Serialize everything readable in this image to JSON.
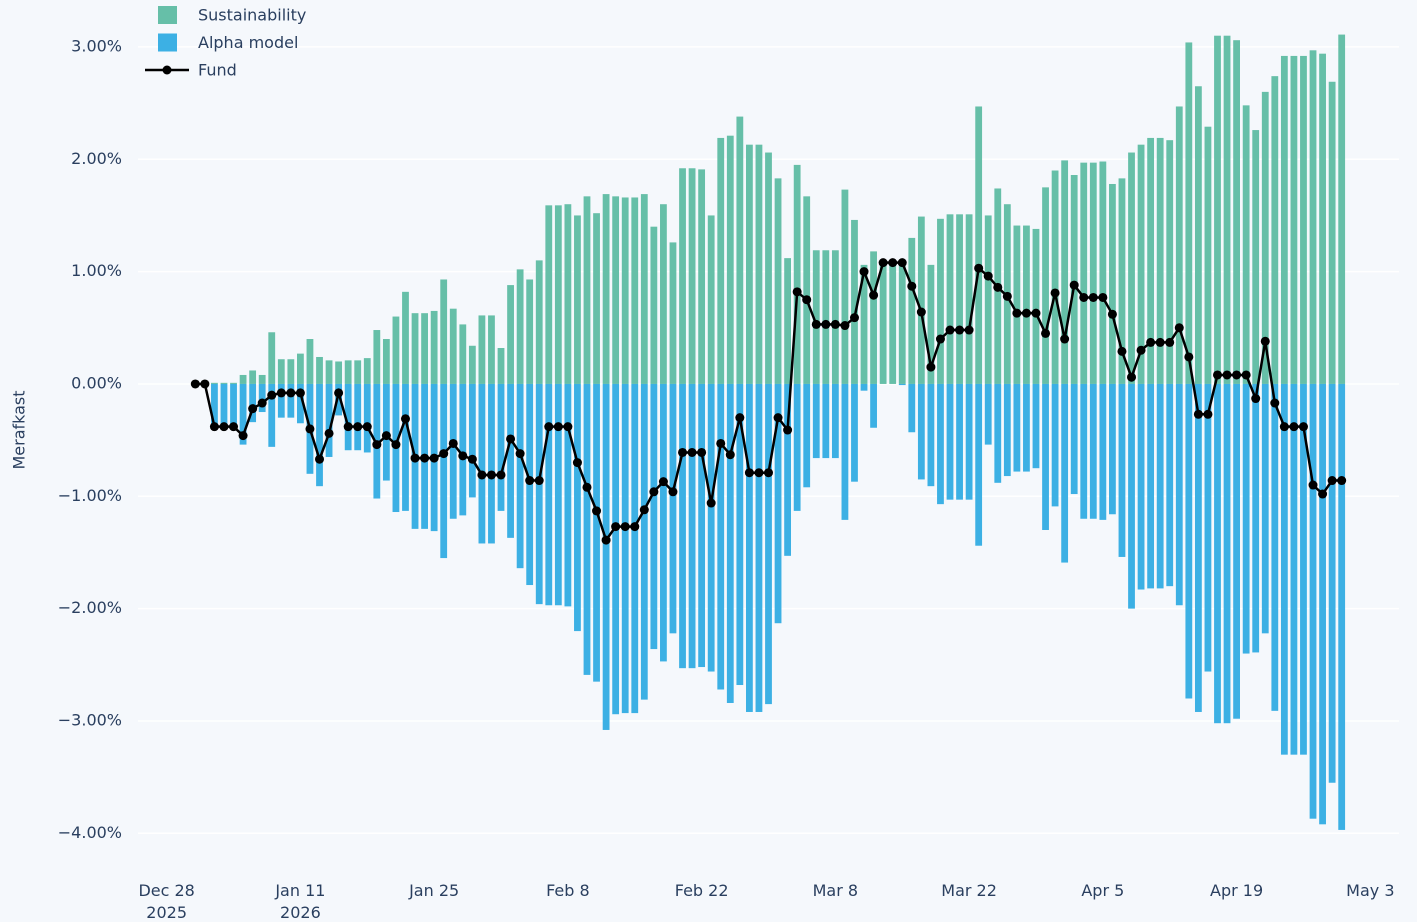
{
  "chart_data": {
    "type": "bar",
    "y_label": "Merafkast",
    "x": [
      "2025-12-31",
      "2026-01-01",
      "2026-01-02",
      "2026-01-03",
      "2026-01-04",
      "2026-01-05",
      "2026-01-06",
      "2026-01-07",
      "2026-01-08",
      "2026-01-09",
      "2026-01-10",
      "2026-01-11",
      "2026-01-12",
      "2026-01-13",
      "2026-01-14",
      "2026-01-15",
      "2026-01-16",
      "2026-01-17",
      "2026-01-18",
      "2026-01-19",
      "2026-01-20",
      "2026-01-21",
      "2026-01-22",
      "2026-01-23",
      "2026-01-24",
      "2026-01-25",
      "2026-01-26",
      "2026-01-27",
      "2026-01-28",
      "2026-01-29",
      "2026-01-30",
      "2026-01-31",
      "2026-02-01",
      "2026-02-02",
      "2026-02-03",
      "2026-02-04",
      "2026-02-05",
      "2026-02-06",
      "2026-02-07",
      "2026-02-08",
      "2026-02-09",
      "2026-02-10",
      "2026-02-11",
      "2026-02-12",
      "2026-02-13",
      "2026-02-14",
      "2026-02-15",
      "2026-02-16",
      "2026-02-17",
      "2026-02-18",
      "2026-02-19",
      "2026-02-20",
      "2026-02-21",
      "2026-02-22",
      "2026-02-23",
      "2026-02-24",
      "2026-02-25",
      "2026-02-26",
      "2026-02-27",
      "2026-02-28",
      "2026-03-01",
      "2026-03-02",
      "2026-03-03",
      "2026-03-04",
      "2026-03-05",
      "2026-03-06",
      "2026-03-07",
      "2026-03-08",
      "2026-03-09",
      "2026-03-10",
      "2026-03-11",
      "2026-03-12",
      "2026-03-13",
      "2026-03-14",
      "2026-03-15",
      "2026-03-16",
      "2026-03-17",
      "2026-03-18",
      "2026-03-19",
      "2026-03-20",
      "2026-03-21",
      "2026-03-22",
      "2026-03-23",
      "2026-03-24",
      "2026-03-25",
      "2026-03-26",
      "2026-03-27",
      "2026-03-28",
      "2026-03-29",
      "2026-03-30",
      "2026-03-31",
      "2026-04-01",
      "2026-04-02",
      "2026-04-03",
      "2026-04-04",
      "2026-04-05",
      "2026-04-06",
      "2026-04-07",
      "2026-04-08",
      "2026-04-09",
      "2026-04-10",
      "2026-04-11",
      "2026-04-12",
      "2026-04-13",
      "2026-04-14",
      "2026-04-15",
      "2026-04-16",
      "2026-04-17",
      "2026-04-18",
      "2026-04-19",
      "2026-04-20",
      "2026-04-21",
      "2026-04-22",
      "2026-04-23",
      "2026-04-24",
      "2026-04-25",
      "2026-04-26",
      "2026-04-27",
      "2026-04-28",
      "2026-04-29",
      "2026-04-30"
    ],
    "series": [
      {
        "name": "Sustainability",
        "color": "#66bfa8",
        "type": "bar",
        "values": [
          0,
          0,
          0.01,
          0.01,
          0.01,
          0.08,
          0.12,
          0.08,
          0.46,
          0.22,
          0.22,
          0.27,
          0.4,
          0.24,
          0.21,
          0.2,
          0.21,
          0.21,
          0.23,
          0.48,
          0.4,
          0.6,
          0.82,
          0.63,
          0.63,
          0.65,
          0.93,
          0.67,
          0.53,
          0.34,
          0.61,
          0.61,
          0.32,
          0.88,
          1.02,
          0.93,
          1.1,
          1.59,
          1.59,
          1.6,
          1.5,
          1.67,
          1.52,
          1.69,
          1.67,
          1.66,
          1.66,
          1.69,
          1.4,
          1.6,
          1.26,
          1.92,
          1.92,
          1.91,
          1.5,
          2.19,
          2.21,
          2.38,
          2.13,
          2.13,
          2.06,
          1.83,
          1.12,
          1.95,
          1.67,
          1.19,
          1.19,
          1.19,
          1.73,
          1.46,
          1.06,
          1.18,
          1.08,
          1.08,
          1.09,
          1.3,
          1.49,
          1.06,
          1.47,
          1.51,
          1.51,
          1.51,
          2.47,
          1.5,
          1.74,
          1.6,
          1.41,
          1.41,
          1.38,
          1.75,
          1.9,
          1.99,
          1.86,
          1.97,
          1.97,
          1.98,
          1.78,
          1.83,
          2.06,
          2.13,
          2.19,
          2.19,
          2.17,
          2.47,
          3.04,
          2.65,
          2.29,
          3.1,
          3.1,
          3.06,
          2.48,
          2.26,
          2.6,
          2.74,
          2.92,
          2.92,
          2.92,
          2.97,
          2.94,
          2.69,
          3.11
        ]
      },
      {
        "name": "Alpha model",
        "color": "#3cb0e4",
        "type": "bar",
        "values": [
          0,
          0,
          -0.39,
          -0.39,
          -0.39,
          -0.54,
          -0.34,
          -0.25,
          -0.56,
          -0.3,
          -0.3,
          -0.35,
          -0.8,
          -0.91,
          -0.65,
          -0.28,
          -0.59,
          -0.59,
          -0.61,
          -1.02,
          -0.86,
          -1.14,
          -1.13,
          -1.29,
          -1.29,
          -1.31,
          -1.55,
          -1.2,
          -1.17,
          -1.01,
          -1.42,
          -1.42,
          -1.13,
          -1.37,
          -1.64,
          -1.79,
          -1.96,
          -1.97,
          -1.97,
          -1.98,
          -2.2,
          -2.59,
          -2.65,
          -3.08,
          -2.94,
          -2.93,
          -2.93,
          -2.81,
          -2.36,
          -2.47,
          -2.22,
          -2.53,
          -2.53,
          -2.52,
          -2.56,
          -2.72,
          -2.84,
          -2.68,
          -2.92,
          -2.92,
          -2.85,
          -2.13,
          -1.53,
          -1.13,
          -0.92,
          -0.66,
          -0.66,
          -0.66,
          -1.21,
          -0.87,
          -0.06,
          -0.39,
          0,
          0,
          -0.01,
          -0.43,
          -0.85,
          -0.91,
          -1.07,
          -1.03,
          -1.03,
          -1.03,
          -1.44,
          -0.54,
          -0.88,
          -0.82,
          -0.78,
          -0.78,
          -0.75,
          -1.3,
          -1.09,
          -1.59,
          -0.98,
          -1.2,
          -1.2,
          -1.21,
          -1.16,
          -1.54,
          -2.0,
          -1.83,
          -1.82,
          -1.82,
          -1.8,
          -1.97,
          -2.8,
          -2.92,
          -2.56,
          -3.02,
          -3.02,
          -2.98,
          -2.4,
          -2.39,
          -2.22,
          -2.91,
          -3.3,
          -3.3,
          -3.3,
          -3.87,
          -3.92,
          -3.55,
          -3.97
        ]
      },
      {
        "name": "Fund",
        "color": "#000000",
        "type": "line",
        "values": [
          0,
          0,
          -0.38,
          -0.38,
          -0.38,
          -0.46,
          -0.22,
          -0.17,
          -0.1,
          -0.08,
          -0.08,
          -0.08,
          -0.4,
          -0.67,
          -0.44,
          -0.08,
          -0.38,
          -0.38,
          -0.38,
          -0.54,
          -0.46,
          -0.54,
          -0.31,
          -0.66,
          -0.66,
          -0.66,
          -0.62,
          -0.53,
          -0.64,
          -0.67,
          -0.81,
          -0.81,
          -0.81,
          -0.49,
          -0.62,
          -0.86,
          -0.86,
          -0.38,
          -0.38,
          -0.38,
          -0.7,
          -0.92,
          -1.13,
          -1.39,
          -1.27,
          -1.27,
          -1.27,
          -1.12,
          -0.96,
          -0.87,
          -0.96,
          -0.61,
          -0.61,
          -0.61,
          -1.06,
          -0.53,
          -0.63,
          -0.3,
          -0.79,
          -0.79,
          -0.79,
          -0.3,
          -0.41,
          0.82,
          0.75,
          0.53,
          0.53,
          0.53,
          0.52,
          0.59,
          1.0,
          0.79,
          1.08,
          1.08,
          1.08,
          0.87,
          0.64,
          0.15,
          0.4,
          0.48,
          0.48,
          0.48,
          1.03,
          0.96,
          0.86,
          0.78,
          0.63,
          0.63,
          0.63,
          0.45,
          0.81,
          0.4,
          0.88,
          0.77,
          0.77,
          0.77,
          0.62,
          0.29,
          0.06,
          0.3,
          0.37,
          0.37,
          0.37,
          0.5,
          0.24,
          -0.27,
          -0.27,
          0.08,
          0.08,
          0.08,
          0.08,
          -0.13,
          0.38,
          -0.17,
          -0.38,
          -0.38,
          -0.38,
          -0.9,
          -0.98,
          -0.86,
          -0.86
        ]
      }
    ],
    "xlim": [
      "2025-12-25",
      "2026-05-06"
    ],
    "xticks": [
      {
        "value": "2025-12-28",
        "label": "Dec 28\n2025"
      },
      {
        "value": "2026-01-11",
        "label": "Jan 11\n2026"
      },
      {
        "value": "2026-01-25",
        "label": "Jan 25"
      },
      {
        "value": "2026-02-08",
        "label": "Feb 8"
      },
      {
        "value": "2026-02-22",
        "label": "Feb 22"
      },
      {
        "value": "2026-03-08",
        "label": "Mar 8"
      },
      {
        "value": "2026-03-22",
        "label": "Mar 22"
      },
      {
        "value": "2026-04-05",
        "label": "Apr 5"
      },
      {
        "value": "2026-04-19",
        "label": "Apr 19"
      },
      {
        "value": "2026-05-03",
        "label": "May 3"
      }
    ],
    "ylim": [
      -4.3,
      3.4
    ],
    "yticks": [
      {
        "value": 3,
        "label": "3.00%"
      },
      {
        "value": 2,
        "label": "2.00%"
      },
      {
        "value": 1,
        "label": "1.00%"
      },
      {
        "value": 0,
        "label": "0.00%"
      },
      {
        "value": -1,
        "label": "−1.00%"
      },
      {
        "value": -2,
        "label": "−2.00%"
      },
      {
        "value": -3,
        "label": "−3.00%"
      },
      {
        "value": -4,
        "label": "−4.00%"
      }
    ],
    "grid": true,
    "legend": "top-left"
  }
}
